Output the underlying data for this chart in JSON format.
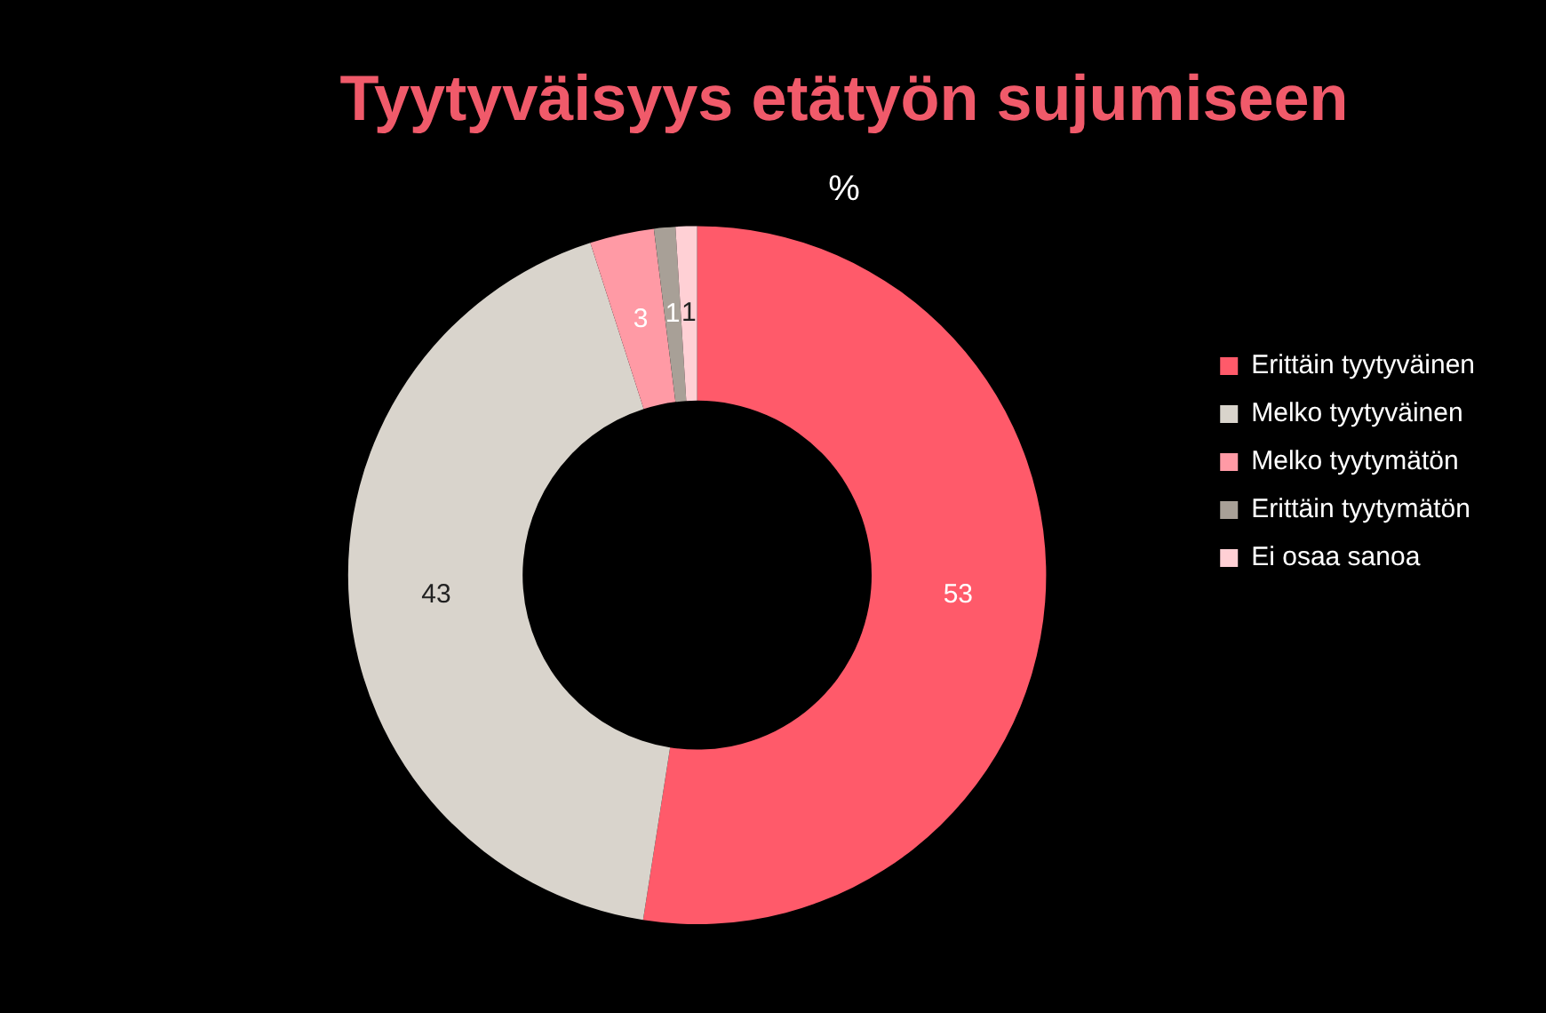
{
  "chart_data": {
    "type": "donut",
    "title": "Tyytyväisyys etätyön sujumiseen",
    "subtitle": "%",
    "categories": [
      "Erittäin tyytyväinen",
      "Melko tyytyväinen",
      "Melko tyytymätön",
      "Erittäin tyytymätön",
      "Ei osaa sanoa"
    ],
    "values": [
      53,
      43,
      3,
      1,
      1
    ],
    "colors": [
      "#ff5a6a",
      "#d9d4cc",
      "#ff9aa5",
      "#a8a097",
      "#ffd0d5"
    ],
    "data_labels": true,
    "legend": "right"
  }
}
